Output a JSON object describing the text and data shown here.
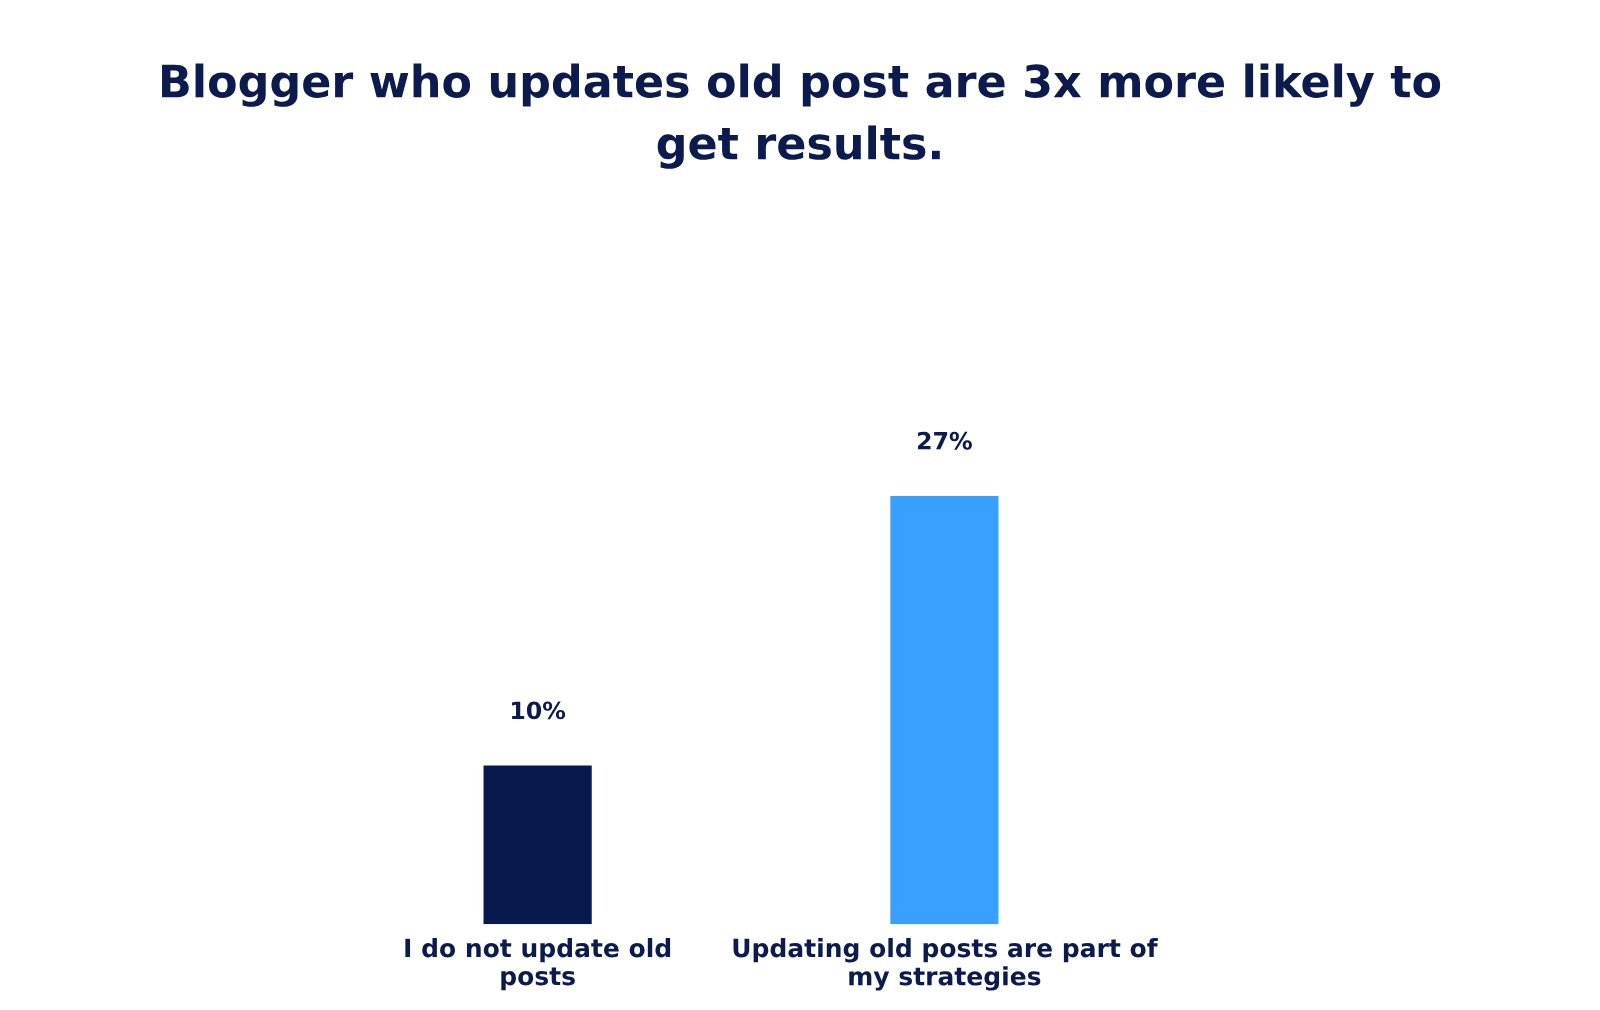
{
  "chart_data": {
    "type": "bar",
    "title": "Blogger who updates old post are 3x more likely to\nget results.",
    "categories": [
      "I do not update old\nposts",
      "Updating old posts are part of\nmy strategies"
    ],
    "values": [
      10,
      27
    ],
    "colors": [
      "#08194d",
      "#3aa0ff"
    ],
    "value_labels": [
      "10%",
      "27%"
    ],
    "grid": false,
    "legend": false
  }
}
